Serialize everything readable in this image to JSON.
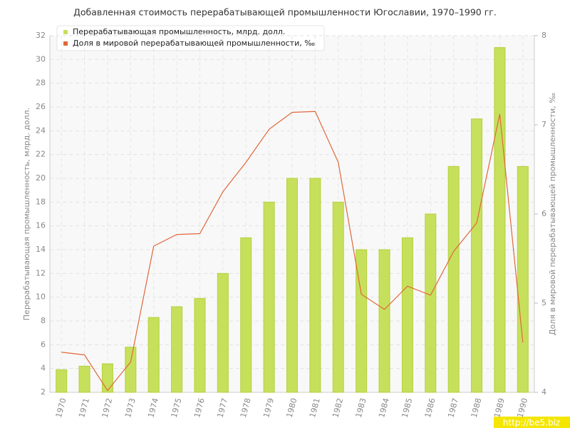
{
  "chart_data": {
    "type": "bar",
    "title": "Добавленная стоимость перерабатывающей промышленности Югославии, 1970–1990 гг.",
    "y_label": "Перерабатывающая промышленность, млрд. долл.",
    "y2_label": "Доля в мировой перерабатывающей промышленности, ‰",
    "watermark": "http://be5.biz",
    "categories": [
      "1970",
      "1971",
      "1972",
      "1973",
      "1974",
      "1975",
      "1976",
      "1977",
      "1978",
      "1979",
      "1980",
      "1981",
      "1982",
      "1983",
      "1984",
      "1985",
      "1986",
      "1987",
      "1988",
      "1989",
      "1990"
    ],
    "series": [
      {
        "name": "Перерабатывающая промышленность, млрд. долл.",
        "type": "bar",
        "color": "#c6e05c",
        "values": [
          3.9,
          4.2,
          4.4,
          5.8,
          8.3,
          9.2,
          9.9,
          12,
          15,
          18,
          20,
          20,
          18,
          14,
          14,
          15,
          17,
          21,
          25,
          31,
          21
        ]
      },
      {
        "name": "Доля в мировой перерабатывающей промышленности, ‰",
        "type": "line",
        "axis": "y2",
        "color": "#e0683a",
        "values": [
          4.45,
          4.42,
          4.02,
          4.34,
          5.64,
          5.77,
          5.78,
          6.25,
          6.58,
          6.95,
          7.14,
          7.15,
          6.58,
          5.1,
          4.93,
          5.19,
          5.09,
          5.58,
          5.9,
          7.12,
          4.56
        ]
      }
    ],
    "ylim": [
      2,
      32
    ],
    "yticks": [
      2,
      4,
      6,
      8,
      10,
      12,
      14,
      16,
      18,
      20,
      22,
      24,
      26,
      28,
      30,
      32
    ],
    "y2lim": [
      4,
      8
    ],
    "y2ticks": [
      4,
      5,
      6,
      7,
      8
    ],
    "grid": true
  }
}
